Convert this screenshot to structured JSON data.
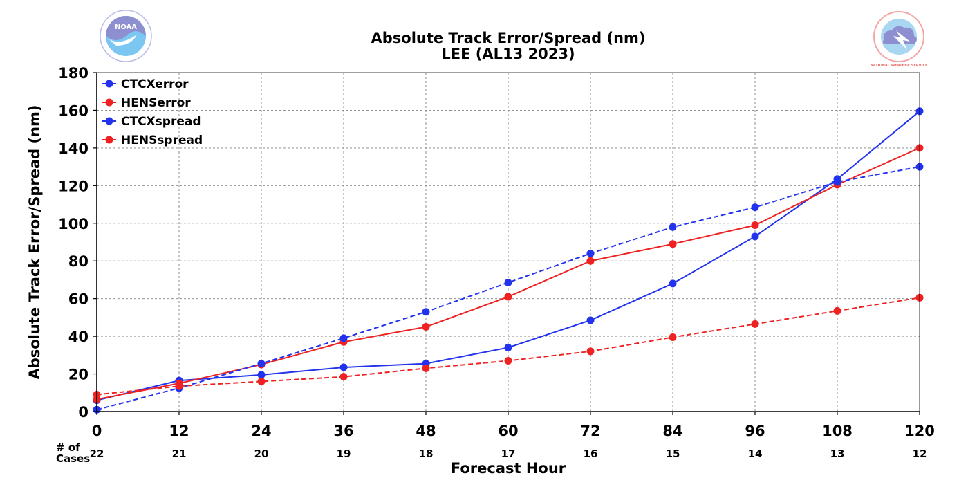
{
  "header": {
    "left_logo": {
      "icon": "noaa-logo-icon",
      "text": "NOAA"
    },
    "right_logo": {
      "icon": "nws-logo-icon",
      "text": "NATIONAL WEATHER SERVICE"
    }
  },
  "cases": {
    "label_line1": "# of",
    "label_line2": "Cases",
    "values": [
      "22",
      "21",
      "20",
      "19",
      "18",
      "17",
      "16",
      "15",
      "14",
      "13",
      "12"
    ]
  },
  "chart_data": {
    "type": "line",
    "title": "Absolute Track Error/Spread (nm)",
    "subtitle": "LEE (AL13 2023)",
    "xlabel": "Forecast Hour",
    "ylabel": "Absolute Track Error/Spread (nm)",
    "x": [
      0,
      12,
      24,
      36,
      48,
      60,
      72,
      84,
      96,
      108,
      120
    ],
    "xlim": [
      0,
      120
    ],
    "ylim": [
      0,
      180
    ],
    "xticks": [
      0,
      12,
      24,
      36,
      48,
      60,
      72,
      84,
      96,
      108,
      120
    ],
    "yticks": [
      0,
      20,
      40,
      60,
      80,
      100,
      120,
      140,
      160,
      180
    ],
    "grid": true,
    "legend_position": "upper-left",
    "series": [
      {
        "name": "CTCXerror",
        "color": "#2233ee",
        "dash": "solid",
        "values": [
          6,
          16.5,
          19.5,
          23.5,
          25.5,
          34,
          48.5,
          68,
          93,
          123.5,
          159.5
        ]
      },
      {
        "name": "HENSerror",
        "color": "#ee2222",
        "dash": "solid",
        "values": [
          6.5,
          15,
          25,
          37,
          45,
          61,
          80,
          89,
          99,
          120.5,
          140
        ]
      },
      {
        "name": "CTCXspread",
        "color": "#2233ee",
        "dash": "dashed",
        "values": [
          1,
          12.5,
          25.5,
          39,
          53,
          68.5,
          84,
          98,
          108.5,
          122,
          130
        ]
      },
      {
        "name": "HENSspread",
        "color": "#ee2222",
        "dash": "dashed",
        "values": [
          9,
          13.5,
          16,
          18.5,
          23,
          27,
          32,
          39.5,
          46.5,
          53.5,
          60.5
        ]
      }
    ]
  }
}
